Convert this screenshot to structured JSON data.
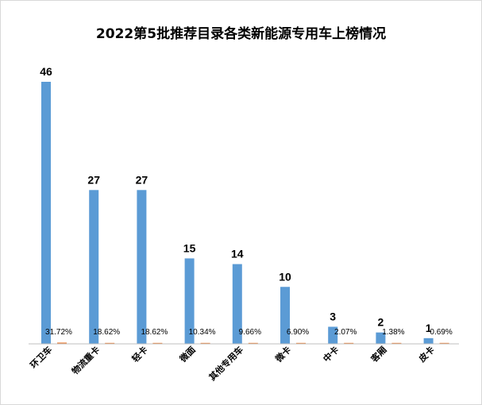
{
  "chart_data": {
    "type": "bar",
    "title": "2022第5批推荐目录各类新能源专用车上榜情况",
    "categories": [
      "环卫车",
      "物流重卡",
      "轻卡",
      "微面",
      "其他专用车",
      "微卡",
      "中卡",
      "客厢",
      "皮卡"
    ],
    "series": [
      {
        "values": [
          46,
          27,
          27,
          15,
          14,
          10,
          3,
          2,
          1
        ],
        "value_labels": [
          "46",
          "27",
          "27",
          "15",
          "14",
          "10",
          "3",
          "2",
          "1"
        ]
      },
      {
        "values": [
          31.72,
          18.62,
          18.62,
          10.34,
          9.66,
          6.9,
          2.07,
          1.38,
          0.69
        ],
        "value_labels": [
          "31.72%",
          "18.62%",
          "18.62%",
          "10.34%",
          "9.66%",
          "6.90%",
          "2.07%",
          "1.38%",
          "0.69%"
        ]
      }
    ],
    "ylim": [
      0,
      50
    ],
    "grid": false,
    "legend": "none",
    "colors": {
      "count_bar": "#5B9BD5",
      "share_bar": "#ED7D31",
      "axis": "#bfbfbf"
    }
  }
}
